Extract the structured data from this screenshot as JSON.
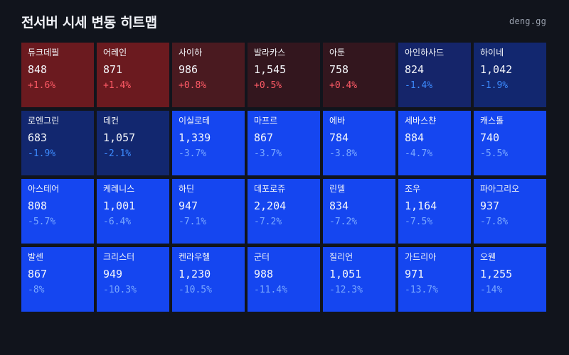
{
  "header": {
    "title": "전서버 시세 변동 히트맵",
    "brand": "deng.gg"
  },
  "colors": {
    "up_text": "#ff5a66",
    "down_text": "#3d8bff",
    "down_text_on_bright": "#7aa8ff"
  },
  "cells": [
    {
      "name": "듀크데필",
      "price": "848",
      "change": "+1.6%",
      "pct": 1.6
    },
    {
      "name": "어레인",
      "price": "871",
      "change": "+1.4%",
      "pct": 1.4
    },
    {
      "name": "사이하",
      "price": "986",
      "change": "+0.8%",
      "pct": 0.8
    },
    {
      "name": "발라카스",
      "price": "1,545",
      "change": "+0.5%",
      "pct": 0.5
    },
    {
      "name": "아툰",
      "price": "758",
      "change": "+0.4%",
      "pct": 0.4
    },
    {
      "name": "아인하사드",
      "price": "824",
      "change": "-1.4%",
      "pct": -1.4
    },
    {
      "name": "하이네",
      "price": "1,042",
      "change": "-1.9%",
      "pct": -1.9
    },
    {
      "name": "로엔그린",
      "price": "683",
      "change": "-1.9%",
      "pct": -1.9
    },
    {
      "name": "데컨",
      "price": "1,057",
      "change": "-2.1%",
      "pct": -2.1
    },
    {
      "name": "이실로테",
      "price": "1,339",
      "change": "-3.7%",
      "pct": -3.7
    },
    {
      "name": "마프르",
      "price": "867",
      "change": "-3.7%",
      "pct": -3.7
    },
    {
      "name": "에바",
      "price": "784",
      "change": "-3.8%",
      "pct": -3.8
    },
    {
      "name": "세바스챤",
      "price": "884",
      "change": "-4.7%",
      "pct": -4.7
    },
    {
      "name": "캐스톨",
      "price": "740",
      "change": "-5.5%",
      "pct": -5.5
    },
    {
      "name": "아스테어",
      "price": "808",
      "change": "-5.7%",
      "pct": -5.7
    },
    {
      "name": "케레니스",
      "price": "1,001",
      "change": "-6.4%",
      "pct": -6.4
    },
    {
      "name": "하딘",
      "price": "947",
      "change": "-7.1%",
      "pct": -7.1
    },
    {
      "name": "데포로쥬",
      "price": "2,204",
      "change": "-7.2%",
      "pct": -7.2
    },
    {
      "name": "린델",
      "price": "834",
      "change": "-7.2%",
      "pct": -7.2
    },
    {
      "name": "조우",
      "price": "1,164",
      "change": "-7.5%",
      "pct": -7.5
    },
    {
      "name": "파아그리오",
      "price": "937",
      "change": "-7.8%",
      "pct": -7.8
    },
    {
      "name": "발센",
      "price": "867",
      "change": "-8%",
      "pct": -8
    },
    {
      "name": "크리스터",
      "price": "949",
      "change": "-10.3%",
      "pct": -10.3
    },
    {
      "name": "켄라우헬",
      "price": "1,230",
      "change": "-10.5%",
      "pct": -10.5
    },
    {
      "name": "군터",
      "price": "988",
      "change": "-11.4%",
      "pct": -11.4
    },
    {
      "name": "질리언",
      "price": "1,051",
      "change": "-12.3%",
      "pct": -12.3
    },
    {
      "name": "가드리아",
      "price": "971",
      "change": "-13.7%",
      "pct": -13.7
    },
    {
      "name": "오웬",
      "price": "1,255",
      "change": "-14%",
      "pct": -14
    }
  ]
}
